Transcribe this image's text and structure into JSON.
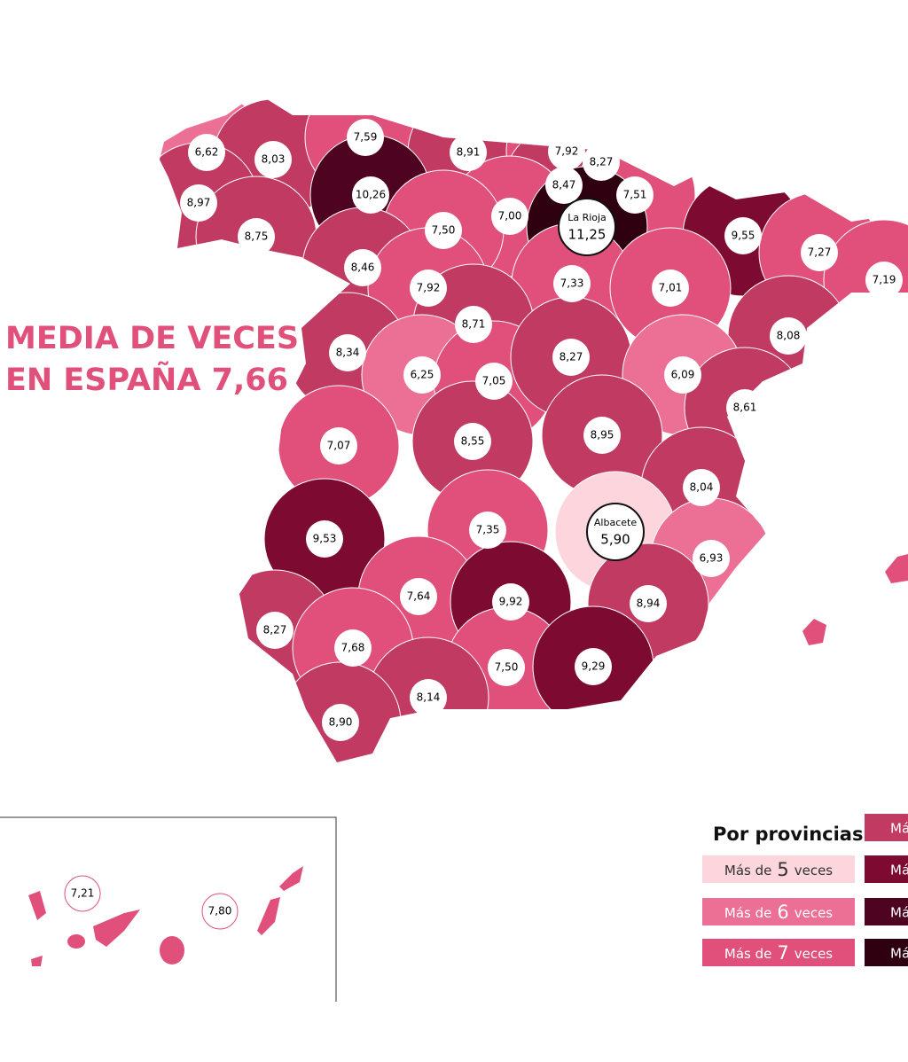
{
  "title": {
    "lines": [
      "MEDIA DE VECES",
      "EN ESPAÑA 7,66"
    ]
  },
  "provinces": [
    {
      "label": "6,62",
      "color": "#ec6f95"
    },
    {
      "label": "8,03",
      "color": "#c03a62"
    },
    {
      "label": "7,59",
      "color": "#e0507b"
    },
    {
      "label": "8,91",
      "color": "#c03a62"
    },
    {
      "label": "7,92",
      "color": "#e0507b"
    },
    {
      "label": "8,27",
      "color": "#c03a62"
    },
    {
      "label": "8,47",
      "color": "#c03a62"
    },
    {
      "label": "10,26",
      "color": "#4e0420"
    },
    {
      "label": "8,97",
      "color": "#c03a62"
    },
    {
      "label": "7,51",
      "color": "#e0507b"
    },
    {
      "label": "7,00",
      "color": "#e0507b"
    },
    {
      "name": "La Rioja",
      "label": "11,25",
      "color": "#2e0010"
    },
    {
      "label": "7,50",
      "color": "#e0507b"
    },
    {
      "label": "8,75",
      "color": "#c03a62"
    },
    {
      "label": "9,55",
      "color": "#7d0a30"
    },
    {
      "label": "7,27",
      "color": "#e0507b"
    },
    {
      "label": "8,46",
      "color": "#c03a62"
    },
    {
      "label": "7,92",
      "color": "#e0507b"
    },
    {
      "label": "7,33",
      "color": "#e0507b"
    },
    {
      "label": "7,01",
      "color": "#e0507b"
    },
    {
      "label": "7,19",
      "color": "#e0507b"
    },
    {
      "label": "8,71",
      "color": "#c03a62"
    },
    {
      "label": "8,08",
      "color": "#c03a62"
    },
    {
      "label": "8,34",
      "color": "#c03a62"
    },
    {
      "label": "6,25",
      "color": "#ec6f95"
    },
    {
      "label": "7,05",
      "color": "#e0507b"
    },
    {
      "label": "8,27",
      "color": "#c03a62"
    },
    {
      "label": "6,09",
      "color": "#ec6f95"
    },
    {
      "label": "8,61",
      "color": "#c03a62"
    },
    {
      "label": "7,07",
      "color": "#e0507b"
    },
    {
      "label": "8,55",
      "color": "#c03a62"
    },
    {
      "label": "8,95",
      "color": "#c03a62"
    },
    {
      "label": "8,04",
      "color": "#c03a62"
    },
    {
      "name": "Albacete",
      "label": "5,90",
      "color": "#fcd6dc"
    },
    {
      "label": "9,53",
      "color": "#7d0a30"
    },
    {
      "label": "7,35",
      "color": "#e0507b"
    },
    {
      "label": "6,93",
      "color": "#ec6f95"
    },
    {
      "label": "7,64",
      "color": "#e0507b"
    },
    {
      "label": "9,92",
      "color": "#7d0a30"
    },
    {
      "label": "8,94",
      "color": "#c03a62"
    },
    {
      "label": "8,27",
      "color": "#c03a62"
    },
    {
      "label": "7,68",
      "color": "#e0507b"
    },
    {
      "label": "7,50",
      "color": "#e0507b"
    },
    {
      "label": "9,29",
      "color": "#7d0a30"
    },
    {
      "label": "8,14",
      "color": "#c03a62"
    },
    {
      "label": "8,90",
      "color": "#c03a62"
    }
  ],
  "canarias": [
    {
      "label": "7,21",
      "color": "#e0507b"
    },
    {
      "label": "7,80",
      "color": "#e0507b"
    }
  ],
  "legend": {
    "title": "Por provincias:",
    "items": [
      {
        "prefix": "Más de",
        "number": 5,
        "suffix": "veces",
        "color": "#fcd6dc"
      },
      {
        "prefix": "Más de",
        "number": 6,
        "suffix": "veces",
        "color": "#ec6f95"
      },
      {
        "prefix": "Más de",
        "number": 7,
        "suffix": "veces",
        "color": "#e0507b"
      }
    ],
    "cut_items": [
      {
        "text": "Má",
        "color": "#c03a62"
      },
      {
        "text": "Má",
        "color": "#7d0a30"
      },
      {
        "text": "Más",
        "color": "#4e0420"
      },
      {
        "text": "Más",
        "color": "#2e0010"
      }
    ]
  }
}
